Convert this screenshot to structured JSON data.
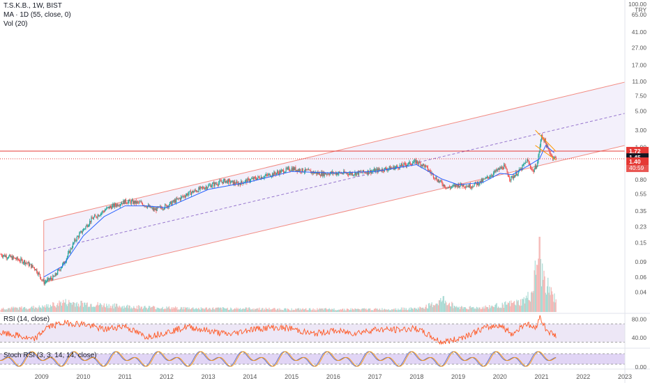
{
  "header": {
    "symbol": "T.S.K.B., 1W, BIST",
    "ma_label": "MA · 1D (55, close, 0)",
    "vol_label": "Vol (20)"
  },
  "price_scale": {
    "top_value": "100.00",
    "currency": "TRY"
  },
  "chart_data": [
    {
      "type": "line",
      "title": "T.S.K.B., 1W, BIST",
      "yscale": "log",
      "ylim": [
        0.025,
        100
      ],
      "xlim": [
        2008.0,
        2023.0
      ],
      "y_tick_labels": [
        "65.00",
        "41.00",
        "27.00",
        "17.00",
        "11.00",
        "7.50",
        "5.00",
        "3.00",
        "1.90",
        "1.20",
        "0.80",
        "0.55",
        "0.35",
        "0.23",
        "0.15",
        "0.09",
        "0.06",
        "0.04"
      ],
      "x_tick_labels": [
        "2009",
        "2010",
        "2011",
        "2012",
        "2013",
        "2014",
        "2015",
        "2016",
        "2017",
        "2018",
        "2019",
        "2020",
        "2021",
        "2022",
        "2023"
      ],
      "series": [
        {
          "name": "price",
          "x": [
            2008.0,
            2008.3,
            2008.6,
            2008.85,
            2009.05,
            2009.3,
            2009.55,
            2009.8,
            2010.2,
            2010.6,
            2011.0,
            2011.4,
            2011.7,
            2012.0,
            2012.5,
            2013.0,
            2013.4,
            2013.7,
            2014.0,
            2014.5,
            2015.0,
            2015.3,
            2015.7,
            2016.0,
            2016.5,
            2017.0,
            2017.5,
            2018.0,
            2018.2,
            2018.5,
            2018.75,
            2019.0,
            2019.3,
            2019.6,
            2019.9,
            2020.1,
            2020.25,
            2020.5,
            2020.65,
            2020.8,
            2020.9,
            2021.0,
            2021.08,
            2021.15,
            2021.25,
            2021.35
          ],
          "values": [
            0.11,
            0.1,
            0.09,
            0.075,
            0.052,
            0.06,
            0.09,
            0.16,
            0.28,
            0.38,
            0.45,
            0.43,
            0.36,
            0.4,
            0.55,
            0.68,
            0.78,
            0.72,
            0.8,
            0.92,
            1.08,
            1.02,
            0.94,
            0.96,
            0.95,
            1.02,
            1.12,
            1.3,
            1.15,
            0.8,
            0.64,
            0.7,
            0.68,
            0.78,
            1.0,
            1.15,
            0.82,
            1.05,
            1.35,
            1.0,
            1.25,
            2.6,
            2.25,
            1.8,
            1.5,
            1.4
          ]
        },
        {
          "name": "MA",
          "x": [
            2009.05,
            2009.5,
            2010.0,
            2010.5,
            2011.0,
            2011.5,
            2012.0,
            2013.0,
            2014.0,
            2015.0,
            2016.0,
            2017.0,
            2018.0,
            2018.6,
            2019.0,
            2019.6,
            2020.0,
            2020.3,
            2020.7,
            2020.95,
            2021.1,
            2021.3
          ],
          "values": [
            0.06,
            0.08,
            0.18,
            0.3,
            0.4,
            0.4,
            0.38,
            0.62,
            0.76,
            1.0,
            0.96,
            1.0,
            1.2,
            0.82,
            0.7,
            0.75,
            0.95,
            0.92,
            1.18,
            1.4,
            2.0,
            1.65
          ]
        }
      ],
      "overlays": [
        {
          "name": "upper-channel",
          "points": [
            [
              2009.05,
              0.27
            ],
            [
              2023.0,
              10.8
            ]
          ]
        },
        {
          "name": "mid-channel",
          "points": [
            [
              2009.05,
              0.12
            ],
            [
              2023.0,
              4.7
            ]
          ]
        },
        {
          "name": "lower-channel",
          "points": [
            [
              2009.05,
              0.052
            ],
            [
              2023.0,
              2.0
            ]
          ]
        },
        {
          "name": "resistance-line",
          "value": 1.72
        },
        {
          "name": "current-price-line",
          "value": 1.4
        }
      ],
      "price_labels": [
        {
          "text": "1.72",
          "color": "#e53935"
        },
        {
          "text": "1.45",
          "color": "#131722"
        },
        {
          "text": "1.40",
          "color": "#e53935"
        },
        {
          "text": "40:59",
          "color": "#e53935"
        }
      ],
      "colors": {
        "up": "#26a69a",
        "down": "#ef5350",
        "ma": "#2962ff",
        "channel": "#f28b82",
        "fill": "#f3f0fb"
      }
    },
    {
      "type": "bar",
      "title": "Vol (20)",
      "x": [
        2008.0,
        2009.0,
        2009.5,
        2010.0,
        2011.0,
        2012.0,
        2013.0,
        2014.0,
        2015.0,
        2016.0,
        2017.0,
        2018.0,
        2018.65,
        2019.0,
        2019.5,
        2020.0,
        2020.5,
        2020.75,
        2020.85,
        2020.95,
        2021.0,
        2021.1,
        2021.2,
        2021.3
      ],
      "values": [
        0.05,
        0.07,
        0.14,
        0.12,
        0.08,
        0.06,
        0.05,
        0.05,
        0.04,
        0.04,
        0.04,
        0.05,
        0.18,
        0.07,
        0.06,
        0.1,
        0.14,
        0.25,
        0.55,
        1.0,
        0.55,
        0.45,
        0.3,
        0.2
      ],
      "ylim": [
        0,
        1
      ]
    },
    {
      "type": "line",
      "title": "RSI (14, close)",
      "y_tick_labels": [
        "80.00",
        "40.00"
      ],
      "ylim": [
        20,
        90
      ],
      "series": [
        {
          "name": "RSI",
          "x": [
            2008.0,
            2008.4,
            2008.8,
            2009.1,
            2009.5,
            2010.0,
            2010.5,
            2011.0,
            2011.5,
            2012.0,
            2012.5,
            2013.0,
            2013.5,
            2014.0,
            2014.5,
            2015.0,
            2015.5,
            2016.0,
            2016.5,
            2017.0,
            2017.5,
            2018.0,
            2018.3,
            2018.6,
            2018.9,
            2019.2,
            2019.6,
            2020.0,
            2020.3,
            2020.6,
            2020.85,
            2020.95,
            2021.1,
            2021.3
          ],
          "values": [
            50,
            45,
            35,
            62,
            72,
            70,
            58,
            66,
            42,
            52,
            64,
            55,
            47,
            58,
            62,
            60,
            48,
            55,
            50,
            58,
            57,
            60,
            45,
            30,
            35,
            45,
            60,
            68,
            48,
            72,
            60,
            88,
            60,
            45
          ]
        }
      ],
      "bands": [
        70,
        30
      ]
    },
    {
      "type": "line",
      "title": "Stoch RSI (3, 3, 14, 14, close)",
      "y_tick_labels": [
        "0.00"
      ],
      "ylim": [
        0,
        100
      ],
      "series": [
        {
          "name": "K",
          "x": [],
          "values": []
        },
        {
          "name": "D",
          "x": [],
          "values": []
        }
      ],
      "bands": [
        80,
        20
      ]
    }
  ]
}
